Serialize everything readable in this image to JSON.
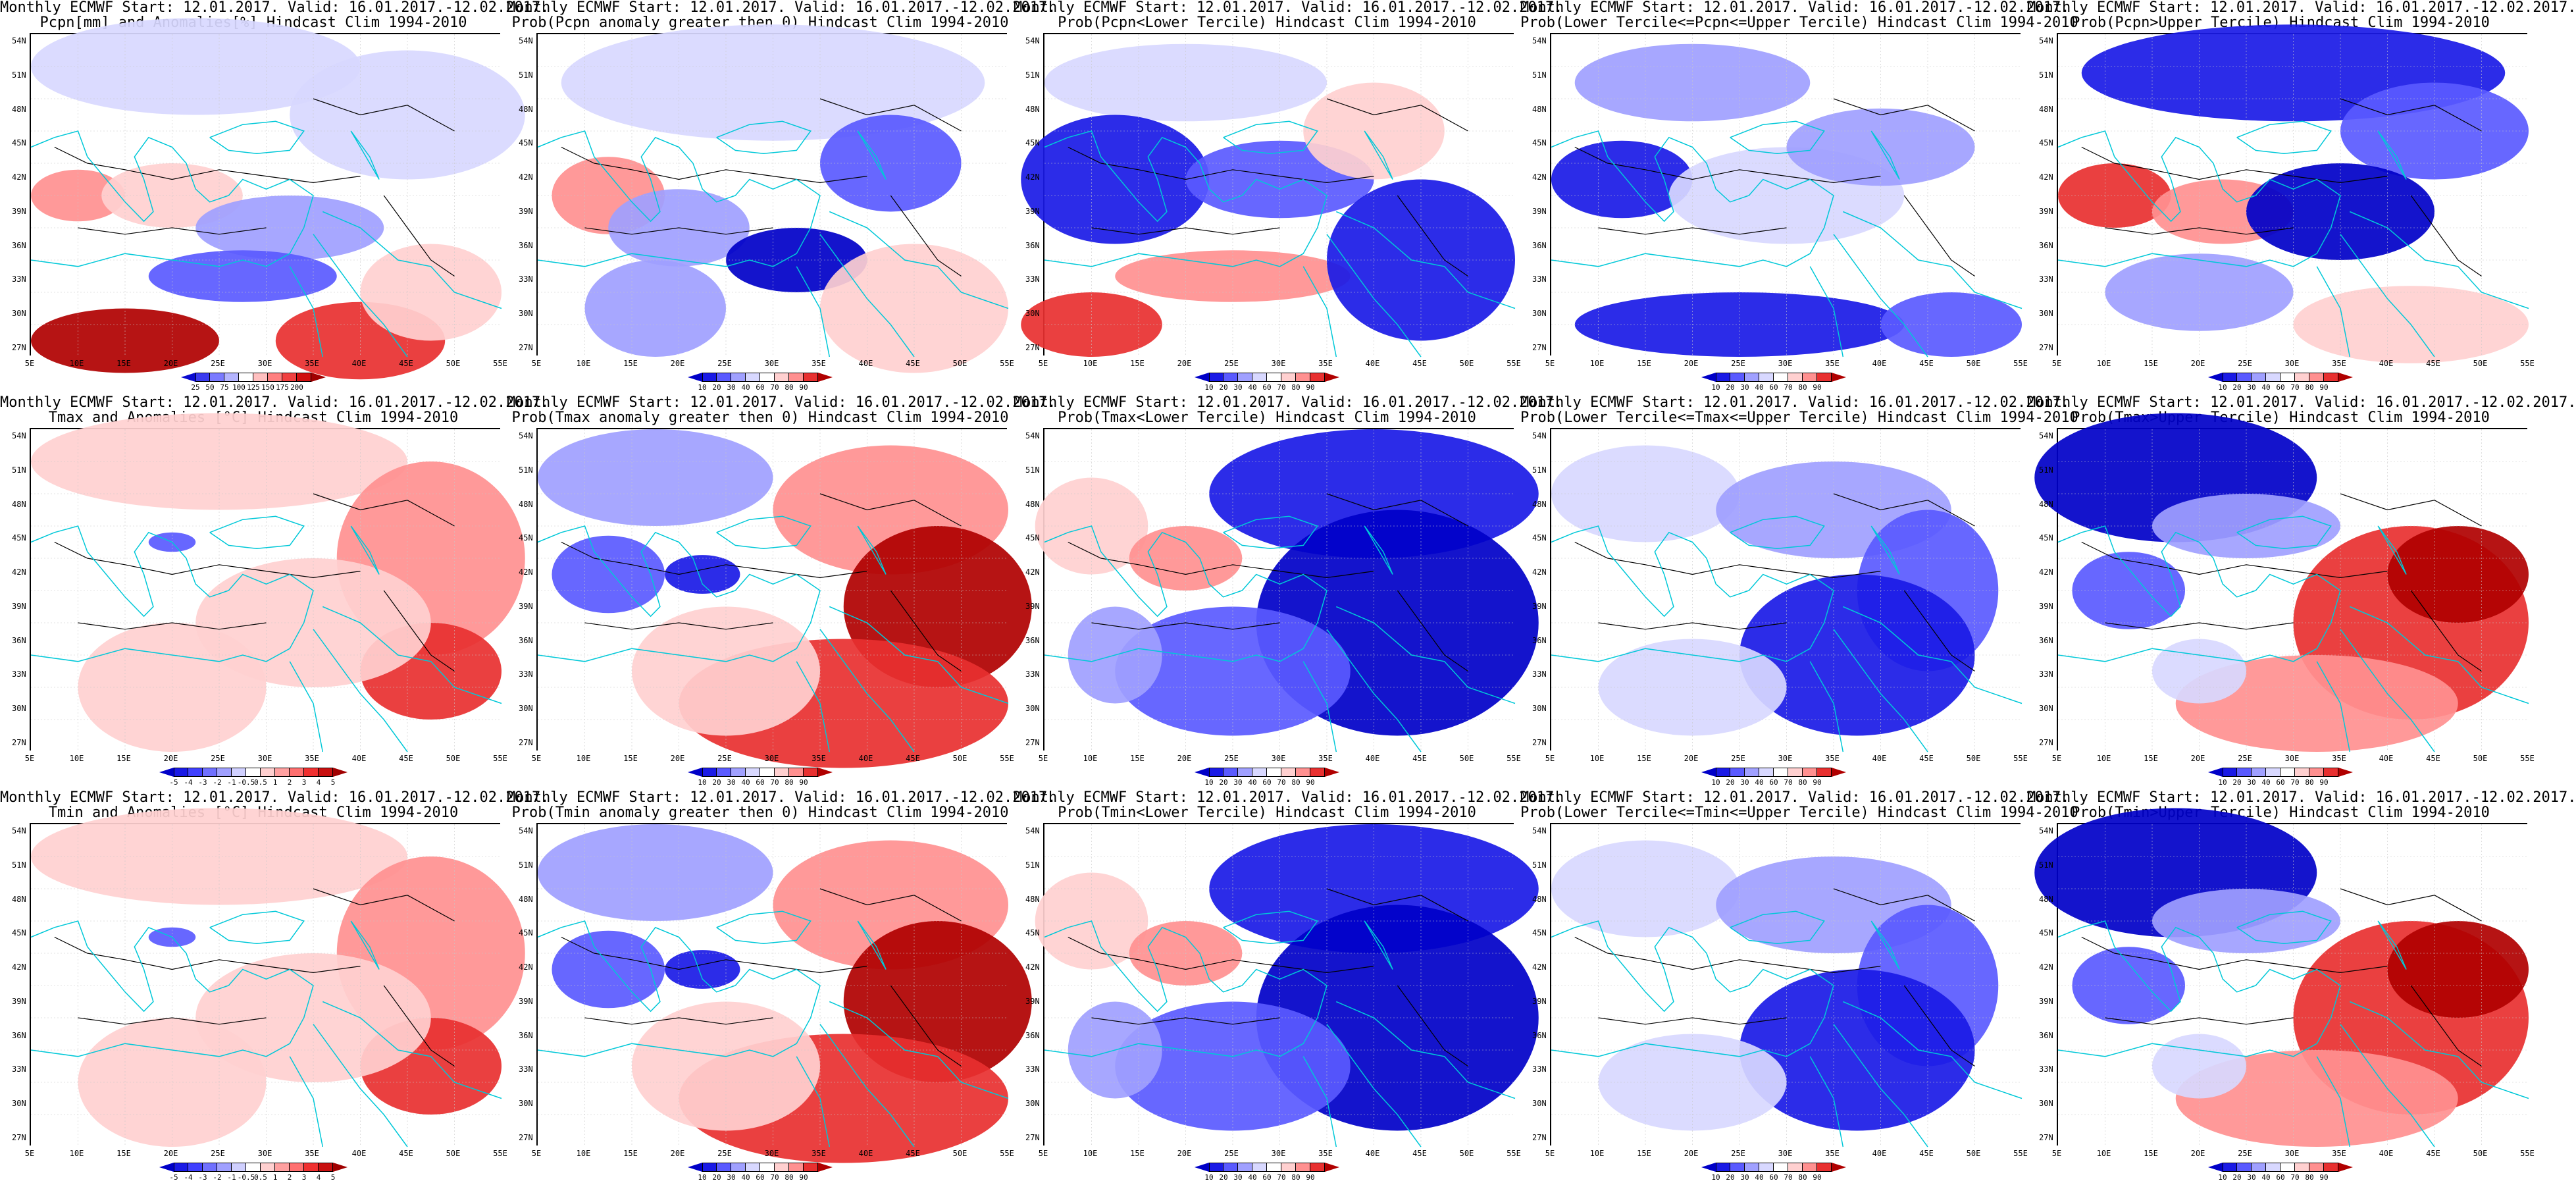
{
  "panels": [
    {
      "title1": "Monthly ECMWF Start: 12.01.2017. Valid: 16.01.2017.-12.02.2017.",
      "title2": "Pcpn[mm] and Anomalies[%] Hindcast Clim 1994-2010",
      "theme": "pcpn_anom",
      "legend": "pcpn"
    },
    {
      "title1": "Monthly ECMWF Start: 12.01.2017. Valid: 16.01.2017.-12.02.2017.",
      "title2": "Prob(Pcpn anomaly greater then 0) Hindcast Clim 1994-2010",
      "theme": "pcpn_pos",
      "legend": "prob"
    },
    {
      "title1": "Monthly ECMWF Start: 12.01.2017. Valid: 16.01.2017.-12.02.2017.",
      "title2": "Prob(Pcpn<Lower Tercile) Hindcast Clim 1994-2010",
      "theme": "pcpn_low",
      "legend": "prob"
    },
    {
      "title1": "Monthly ECMWF Start: 12.01.2017. Valid: 16.01.2017.-12.02.2017.",
      "title2": "Prob(Lower Tercile<=Pcpn<=Upper Tercile) Hindcast Clim 1994-2010",
      "theme": "pcpn_mid",
      "legend": "prob"
    },
    {
      "title1": "Monthly ECMWF Start: 12.01.2017. Valid: 16.01.2017.-12.02.2017.",
      "title2": "Prob(Pcpn>Upper Tercile) Hindcast Clim 1994-2010",
      "theme": "pcpn_up",
      "legend": "prob"
    },
    {
      "title1": "Monthly ECMWF Start: 12.01.2017. Valid: 16.01.2017.-12.02.2017.",
      "title2": "Tmax and Anomalies [°C] Hindcast Clim 1994-2010",
      "theme": "t_anom",
      "legend": "temp"
    },
    {
      "title1": "Monthly ECMWF Start: 12.01.2017. Valid: 16.01.2017.-12.02.2017.",
      "title2": "Prob(Tmax anomaly greater then 0) Hindcast Clim 1994-2010",
      "theme": "t_pos",
      "legend": "prob"
    },
    {
      "title1": "Monthly ECMWF Start: 12.01.2017. Valid: 16.01.2017.-12.02.2017.",
      "title2": "Prob(Tmax<Lower Tercile) Hindcast Clim 1994-2010",
      "theme": "t_low",
      "legend": "prob"
    },
    {
      "title1": "Monthly ECMWF Start: 12.01.2017. Valid: 16.01.2017.-12.02.2017.",
      "title2": "Prob(Lower Tercile<=Tmax<=Upper Tercile) Hindcast Clim 1994-2010",
      "theme": "t_mid",
      "legend": "prob"
    },
    {
      "title1": "Monthly ECMWF Start: 12.01.2017. Valid: 16.01.2017.-12.02.2017.",
      "title2": "Prob(Tmax>Upper Tercile) Hindcast Clim 1994-2010",
      "theme": "t_up",
      "legend": "prob"
    },
    {
      "title1": "Monthly ECMWF Start: 12.01.2017. Valid: 16.01.2017.-12.02.2017.",
      "title2": "Tmin and Anomalies [°C] Hindcast Clim 1994-2010",
      "theme": "t_anom",
      "legend": "temp"
    },
    {
      "title1": "Monthly ECMWF Start: 12.01.2017. Valid: 16.01.2017.-12.02.2017.",
      "title2": "Prob(Tmin anomaly greater then 0) Hindcast Clim 1994-2010",
      "theme": "t_pos",
      "legend": "prob"
    },
    {
      "title1": "Monthly ECMWF Start: 12.01.2017. Valid: 16.01.2017.-12.02.2017.",
      "title2": "Prob(Tmin<Lower Tercile) Hindcast Clim 1994-2010",
      "theme": "t_low",
      "legend": "prob"
    },
    {
      "title1": "Monthly ECMWF Start: 12.01.2017. Valid: 16.01.2017.-12.02.2017.",
      "title2": "Prob(Lower Tercile<=Tmin<=Upper Tercile) Hindcast Clim 1994-2010",
      "theme": "t_mid",
      "legend": "prob"
    },
    {
      "title1": "Monthly ECMWF Start: 12.01.2017. Valid: 16.01.2017.-12.02.2017.",
      "title2": "Prob(Tmin>Upper Tercile) Hindcast Clim 1994-2010",
      "theme": "t_up",
      "legend": "prob"
    }
  ],
  "lat_labels": [
    "54N",
    "51N",
    "48N",
    "45N",
    "42N",
    "39N",
    "36N",
    "33N",
    "30N",
    "27N"
  ],
  "lon_labels": [
    "5E",
    "10E",
    "15E",
    "20E",
    "25E",
    "30E",
    "35E",
    "40E",
    "45E",
    "50E",
    "55E"
  ],
  "legends": {
    "pcpn": {
      "ticks": [
        "25",
        "50",
        "75",
        "100",
        "125",
        "150",
        "175",
        "200"
      ],
      "colors": [
        "#0a0ad0",
        "#3a3af0",
        "#7a7aff",
        "#b5b5ff",
        "#ffffff",
        "#ffc0c0",
        "#ff8080",
        "#f04040",
        "#d01010",
        "#a00000"
      ]
    },
    "prob": {
      "ticks": [
        "10",
        "20",
        "30",
        "40",
        "60",
        "70",
        "80",
        "90"
      ],
      "colors": [
        "#0000c8",
        "#1a1ae6",
        "#5a5aff",
        "#a0a0ff",
        "#d8d8ff",
        "#ffffff",
        "#ffd0d0",
        "#ff9090",
        "#e83030",
        "#b00000"
      ]
    },
    "temp": {
      "ticks": [
        "-5",
        "-4",
        "-3",
        "-2",
        "-1",
        "-0.5",
        "0.5",
        "1",
        "2",
        "3",
        "4",
        "5"
      ],
      "colors": [
        "#0000c8",
        "#1a1ae6",
        "#4040ff",
        "#7070ff",
        "#a0a0ff",
        "#d0d0ff",
        "#ffffff",
        "#ffd0d0",
        "#ffa0a0",
        "#ff7070",
        "#f03030",
        "#c81010",
        "#a00000"
      ]
    }
  },
  "colors": {
    "coast": "#00c8d8",
    "contour": "#000000",
    "grid": "#c8c8c8"
  }
}
